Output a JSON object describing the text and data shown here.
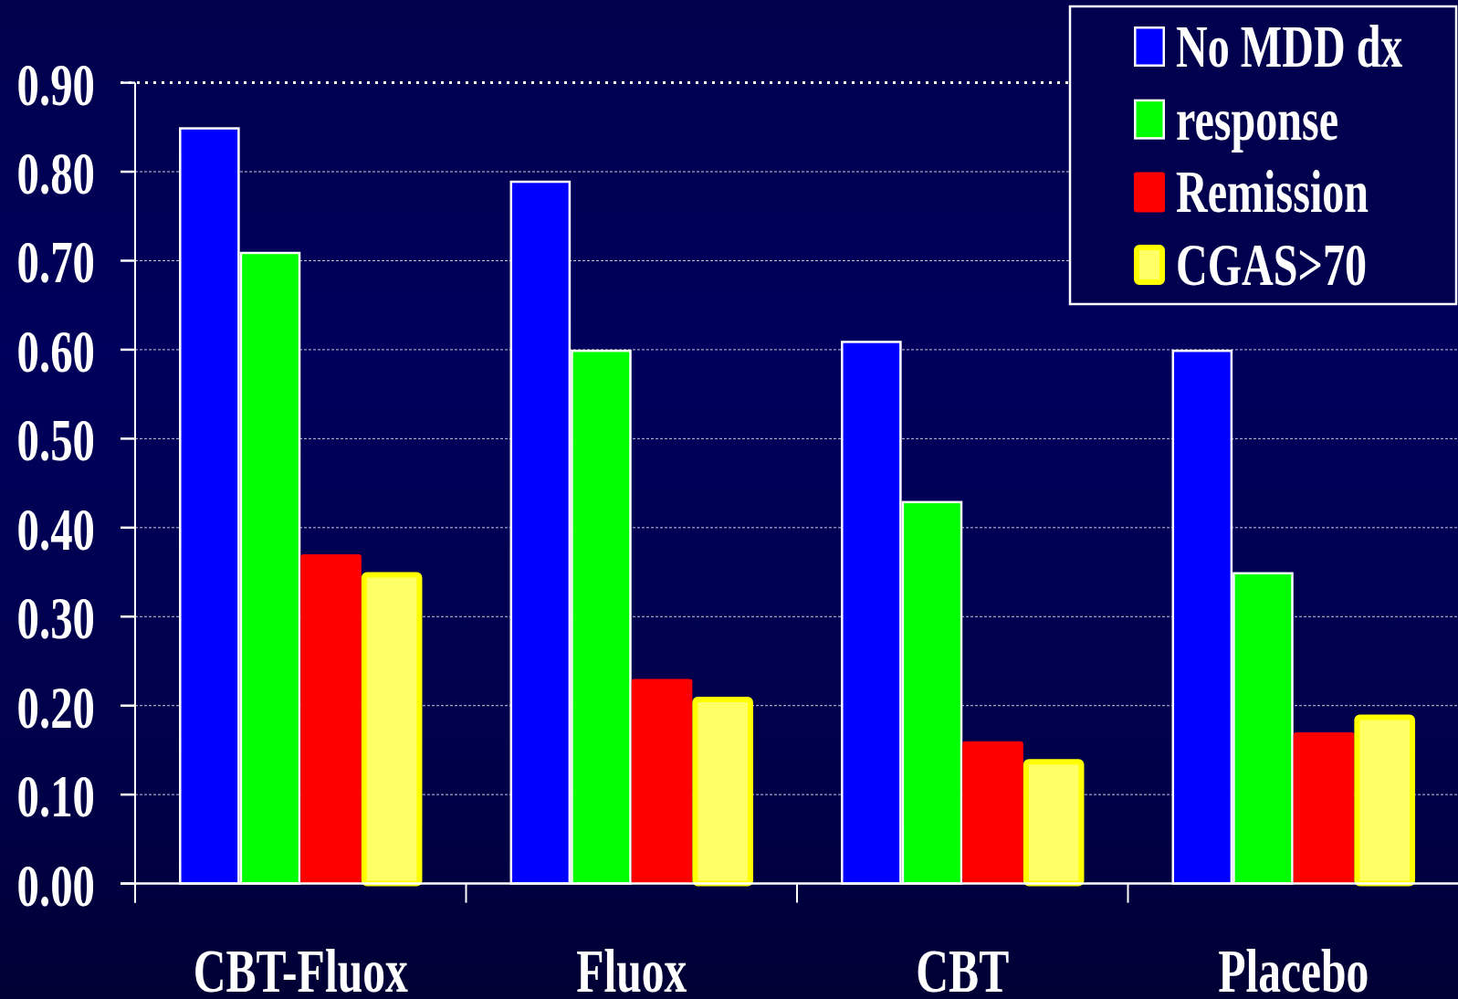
{
  "chart_data": {
    "type": "bar",
    "categories": [
      "CBT-Fluox",
      "Fluox",
      "CBT",
      "Placebo"
    ],
    "series": [
      {
        "name": "No MDD dx",
        "color": "#0000ff",
        "values": [
          0.85,
          0.79,
          0.61,
          0.6
        ]
      },
      {
        "name": "response",
        "color": "#00ff00",
        "values": [
          0.71,
          0.6,
          0.43,
          0.35
        ]
      },
      {
        "name": "Remission",
        "color": "#ff0000",
        "values": [
          0.37,
          0.23,
          0.16,
          0.17
        ]
      },
      {
        "name": "CGAS>70",
        "color": "#ffff66",
        "values": [
          0.35,
          0.21,
          0.14,
          0.19
        ]
      }
    ],
    "ylim": [
      0,
      0.9
    ],
    "yticks": [
      {
        "value": 0,
        "label": "0.00"
      },
      {
        "value": 0.1,
        "label": "0.10"
      },
      {
        "value": 0.2,
        "label": "0.20"
      },
      {
        "value": 0.3,
        "label": "0.30"
      },
      {
        "value": 0.4,
        "label": "0.40"
      },
      {
        "value": 0.5,
        "label": "0.50"
      },
      {
        "value": 0.6,
        "label": "0.60"
      },
      {
        "value": 0.7,
        "label": "0.70"
      },
      {
        "value": 0.8,
        "label": "0.80"
      },
      {
        "value": 0.9,
        "label": "0.90"
      }
    ],
    "grid": "y",
    "legend": "top right"
  }
}
